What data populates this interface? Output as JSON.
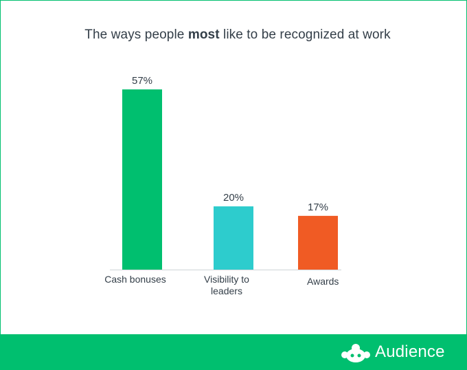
{
  "chart_data": {
    "type": "bar",
    "title_parts": [
      "The ways people ",
      "most",
      " like to be recognized at work"
    ],
    "categories": [
      [
        "Cash bonuses"
      ],
      [
        "Visibility to",
        "leaders"
      ],
      [
        "Awards"
      ]
    ],
    "values": [
      57,
      20,
      17
    ],
    "value_labels": [
      "57%",
      "20%",
      "17%"
    ],
    "colors": [
      "#00bf6f",
      "#2dcccd",
      "#f05b24"
    ],
    "ylim": [
      0,
      57
    ],
    "grid": false,
    "legend": "none"
  },
  "footer": {
    "brand": "Audience",
    "logo_icon": "surveymonkey-logo-icon",
    "background": "#00bf6f"
  }
}
